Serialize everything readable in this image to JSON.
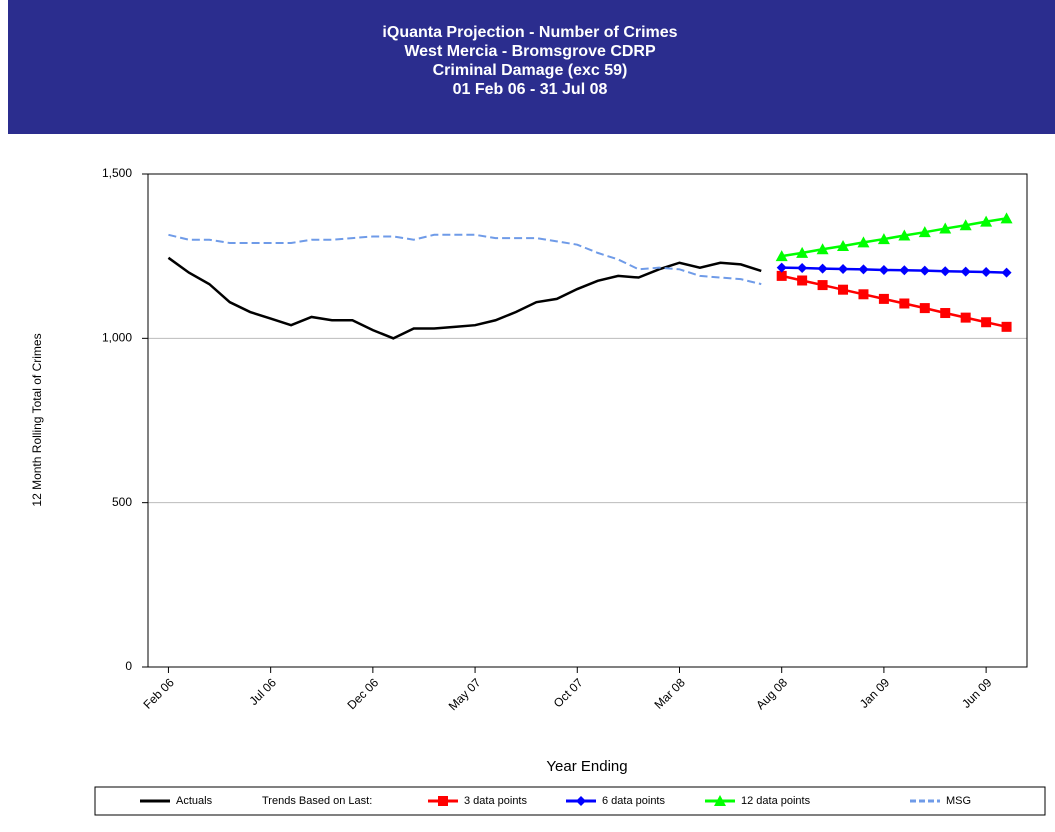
{
  "chart_data": {
    "type": "line",
    "title": [
      "iQuanta Projection - Number of Crimes",
      "West Mercia - Bromsgrove CDRP",
      "Criminal Damage (exc 59)",
      "01 Feb 06 - 31 Jul 08"
    ],
    "y_label": "12 Month Rolling Total of Crimes",
    "x_label": "Year Ending",
    "legend_prefix": "Trends Based on Last:",
    "legend": "bottom",
    "grid": true,
    "categories": [
      "Feb 06",
      null,
      null,
      null,
      null,
      "Jul 06",
      null,
      null,
      null,
      null,
      "Dec 06",
      null,
      null,
      null,
      null,
      "May 07",
      null,
      null,
      null,
      null,
      "Oct 07",
      null,
      null,
      null,
      null,
      "Mar 08",
      null,
      null,
      null,
      null,
      "Aug 08",
      null,
      null,
      null,
      null,
      "Jan 09",
      null,
      null,
      null,
      null,
      "Jun 09",
      null
    ],
    "ylim": [
      0,
      1500
    ],
    "yticks": [
      0,
      500,
      {
        "value": 1000,
        "label": "1,000"
      },
      {
        "value": 1500,
        "label": "1,500"
      }
    ],
    "series": [
      {
        "name": "Actuals",
        "color": "#000000",
        "line_style": "solid",
        "marker": "none",
        "values": [
          1245,
          1200,
          1165,
          1110,
          1080,
          1060,
          1040,
          1065,
          1055,
          1055,
          1025,
          1000,
          1030,
          1030,
          1035,
          1040,
          1055,
          1080,
          1110,
          1120,
          1150,
          1175,
          1190,
          1185,
          1210,
          1230,
          1215,
          1230,
          1225,
          1205,
          null,
          null,
          null,
          null,
          null,
          null,
          null,
          null,
          null,
          null,
          null,
          null
        ]
      },
      {
        "name": "3 data points",
        "color": "#ff0000",
        "line_style": "solid",
        "marker": "square",
        "values": [
          null,
          null,
          null,
          null,
          null,
          null,
          null,
          null,
          null,
          null,
          null,
          null,
          null,
          null,
          null,
          null,
          null,
          null,
          null,
          null,
          null,
          null,
          null,
          null,
          null,
          null,
          null,
          null,
          null,
          null,
          1190,
          1176,
          1162,
          1148,
          1134,
          1120,
          1106,
          1092,
          1077,
          1063,
          1049,
          1035
        ]
      },
      {
        "name": "6 data points",
        "color": "#0000ff",
        "line_style": "solid",
        "marker": "diamond",
        "values": [
          null,
          null,
          null,
          null,
          null,
          null,
          null,
          null,
          null,
          null,
          null,
          null,
          null,
          null,
          null,
          null,
          null,
          null,
          null,
          null,
          null,
          null,
          null,
          null,
          null,
          null,
          null,
          null,
          null,
          null,
          1215,
          1214,
          1212,
          1211,
          1210,
          1208,
          1207,
          1206,
          1204,
          1203,
          1202,
          1200
        ]
      },
      {
        "name": "12 data points",
        "color": "#00ff00",
        "line_style": "solid",
        "marker": "triangle",
        "values": [
          null,
          null,
          null,
          null,
          null,
          null,
          null,
          null,
          null,
          null,
          null,
          null,
          null,
          null,
          null,
          null,
          null,
          null,
          null,
          null,
          null,
          null,
          null,
          null,
          null,
          null,
          null,
          null,
          null,
          null,
          1250,
          1260,
          1271,
          1281,
          1292,
          1302,
          1313,
          1323,
          1334,
          1344,
          1355,
          1365
        ]
      },
      {
        "name": "MSG",
        "color": "#6f9be8",
        "line_style": "dashed",
        "marker": "none",
        "values": [
          1315,
          1300,
          1300,
          1290,
          1290,
          1290,
          1290,
          1300,
          1300,
          1305,
          1310,
          1310,
          1300,
          1315,
          1315,
          1315,
          1305,
          1305,
          1305,
          1295,
          1285,
          1260,
          1240,
          1210,
          1215,
          1210,
          1190,
          1185,
          1180,
          1165,
          null,
          null,
          null,
          null,
          null,
          null,
          null,
          null,
          null,
          null,
          null,
          null
        ]
      }
    ]
  }
}
